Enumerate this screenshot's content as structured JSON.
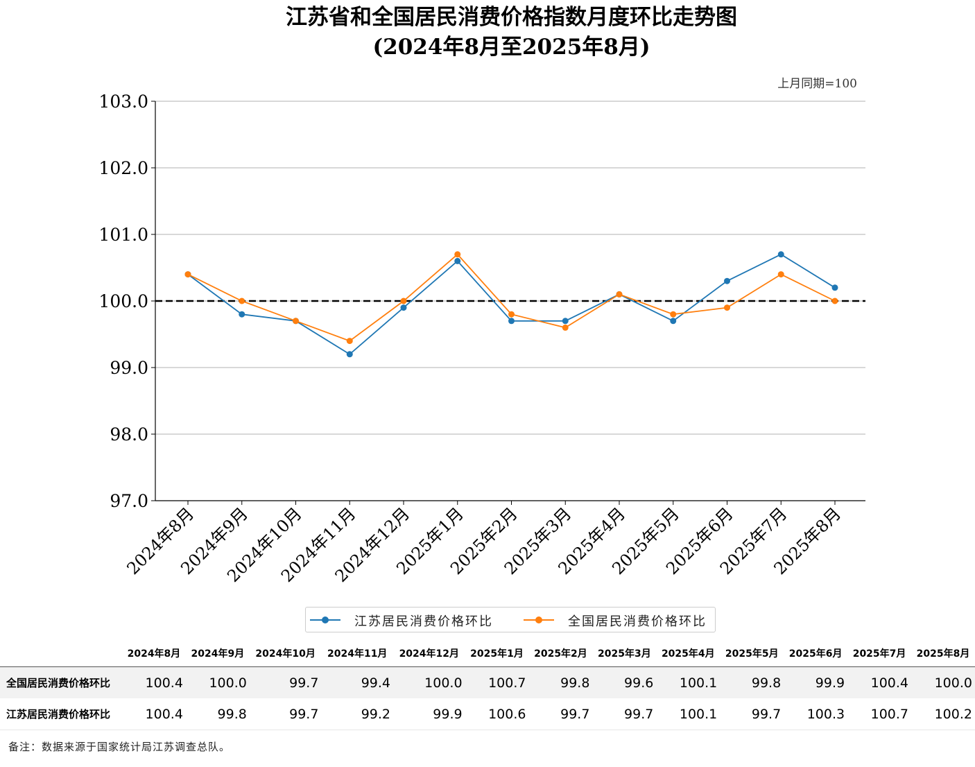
{
  "chart_data": {
    "type": "line",
    "title": "江苏省和全国居民消费价格指数月度环比走势图",
    "subtitle": "(2024年8月至2025年8月)",
    "baseline_note": "上月同期=100",
    "categories": [
      "2024年8月",
      "2024年9月",
      "2024年10月",
      "2024年11月",
      "2024年12月",
      "2025年1月",
      "2025年2月",
      "2025年3月",
      "2025年4月",
      "2025年5月",
      "2025年6月",
      "2025年7月",
      "2025年8月"
    ],
    "ylim": [
      97.0,
      103.0
    ],
    "yticks": [
      "97.0",
      "98.0",
      "99.0",
      "100.0",
      "101.0",
      "102.0",
      "103.0"
    ],
    "reference_line": 100.0,
    "grid": "horizontal",
    "legend_position": "bottom",
    "series": [
      {
        "name": "江苏居民消费价格环比",
        "color": "#1f77b4",
        "values": [
          100.4,
          99.8,
          99.7,
          99.2,
          99.9,
          100.6,
          99.7,
          99.7,
          100.1,
          99.7,
          100.3,
          100.7,
          100.2
        ]
      },
      {
        "name": "全国居民消费价格环比",
        "color": "#ff7f0e",
        "values": [
          100.4,
          100.0,
          99.7,
          99.4,
          100.0,
          100.7,
          99.8,
          99.6,
          100.1,
          99.8,
          99.9,
          100.4,
          100.0
        ]
      }
    ]
  },
  "table": {
    "headers": [
      "2024年8月",
      "2024年9月",
      "2024年10月",
      "2024年11月",
      "2024年12月",
      "2025年1月",
      "2025年2月",
      "2025年3月",
      "2025年4月",
      "2025年5月",
      "2025年6月",
      "2025年7月",
      "2025年8月"
    ],
    "rows": [
      {
        "label": "全国居民消费价格环比",
        "values": [
          "100.4",
          "100.0",
          "99.7",
          "99.4",
          "100.0",
          "100.7",
          "99.8",
          "99.6",
          "100.1",
          "99.8",
          "99.9",
          "100.4",
          "100.0"
        ]
      },
      {
        "label": "江苏居民消费价格环比",
        "values": [
          "100.4",
          "99.8",
          "99.7",
          "99.2",
          "99.9",
          "100.6",
          "99.7",
          "99.7",
          "100.1",
          "99.7",
          "100.3",
          "100.7",
          "100.2"
        ]
      }
    ]
  },
  "footnote": "备注：数据来源于国家统计局江苏调查总队。"
}
